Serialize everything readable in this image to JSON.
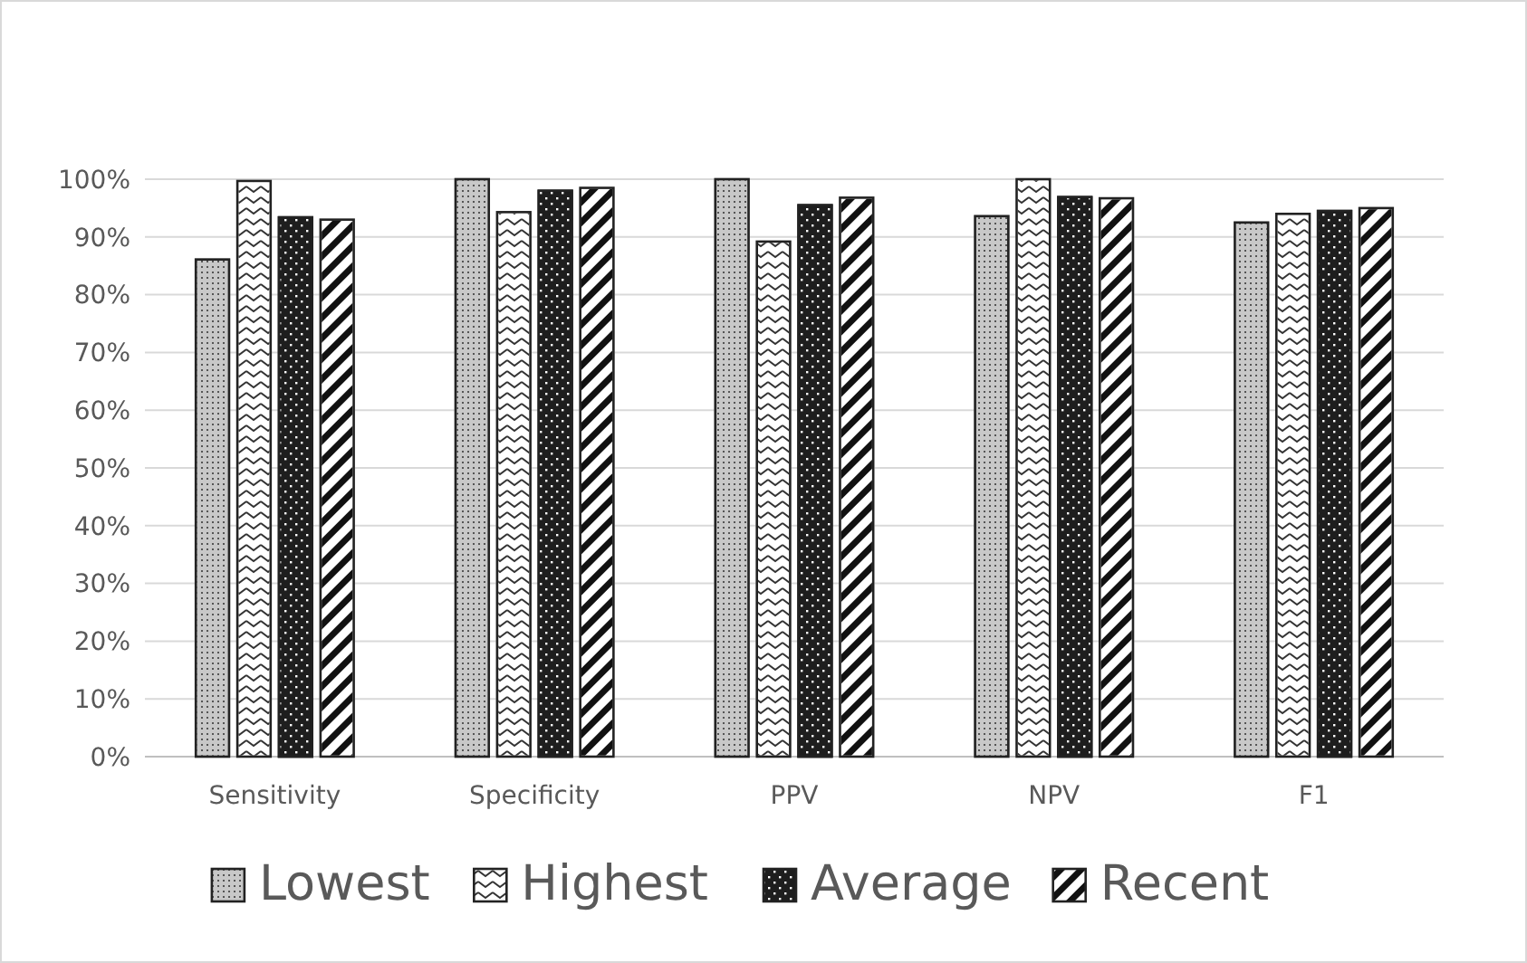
{
  "chart_data": {
    "type": "bar",
    "categories": [
      "Sensitivity",
      "Specificity",
      "PPV",
      "NPV",
      "F1"
    ],
    "series": [
      {
        "name": "Lowest",
        "color": "#c8c8c8",
        "values": [
          86.1,
          100,
          100,
          93.6,
          92.5
        ]
      },
      {
        "name": "Highest",
        "color": "#ffffff",
        "values": [
          99.7,
          94.3,
          89.2,
          100,
          94.0
        ]
      },
      {
        "name": "Average",
        "color": "#1e1e1e",
        "values": [
          93.4,
          98.0,
          95.5,
          96.9,
          94.5
        ]
      },
      {
        "name": "Recent",
        "color": "#ffffff",
        "values": [
          93.0,
          98.5,
          96.8,
          96.7,
          95.0
        ]
      }
    ],
    "ylim": [
      0,
      100
    ],
    "yticks": [
      {
        "value": 0,
        "label": "0%"
      },
      {
        "value": 10,
        "label": "10%"
      },
      {
        "value": 20,
        "label": "20%"
      },
      {
        "value": 30,
        "label": "30%"
      },
      {
        "value": 40,
        "label": "40%"
      },
      {
        "value": 50,
        "label": "50%"
      },
      {
        "value": 60,
        "label": "60%"
      },
      {
        "value": 70,
        "label": "70%"
      },
      {
        "value": 80,
        "label": "80%"
      },
      {
        "value": 90,
        "label": "90%"
      },
      {
        "value": 100,
        "label": "100%"
      }
    ],
    "grid": "y",
    "legend": "bottom"
  }
}
